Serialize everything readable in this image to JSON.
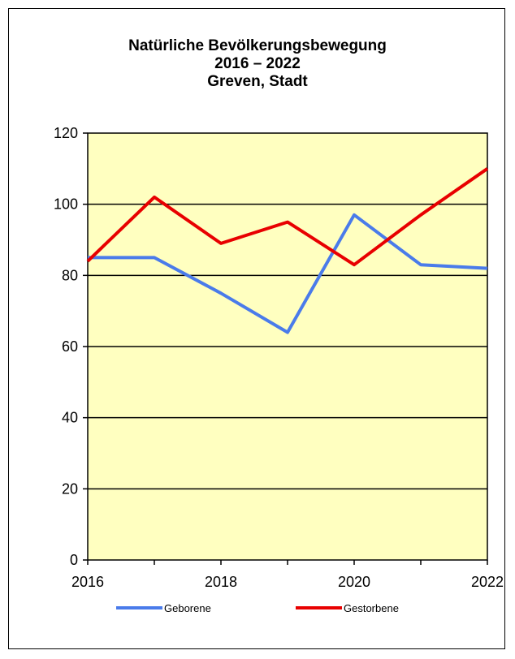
{
  "chart_data": {
    "type": "line",
    "title": [
      "Natürliche Bevölkerungsbewegung",
      "2016 – 2022",
      "Greven, Stadt"
    ],
    "x": [
      2016,
      2017,
      2018,
      2019,
      2020,
      2021,
      2022
    ],
    "xticks": [
      "2016",
      "2018",
      "2020",
      "2022"
    ],
    "xlim": [
      2016,
      2022
    ],
    "ylim": [
      0,
      120
    ],
    "yticks": [
      "0",
      "20",
      "40",
      "60",
      "80",
      "100",
      "120"
    ],
    "grid": true,
    "plot_background": "#FFFFC0",
    "legend_position": "bottom",
    "series": [
      {
        "name": "Geborene",
        "color": "#4A7BEA",
        "values": [
          85,
          85,
          75,
          64,
          97,
          83,
          82
        ]
      },
      {
        "name": "Gestorbene",
        "color": "#E80000",
        "values": [
          84,
          102,
          89,
          95,
          83,
          97,
          110
        ]
      }
    ]
  }
}
